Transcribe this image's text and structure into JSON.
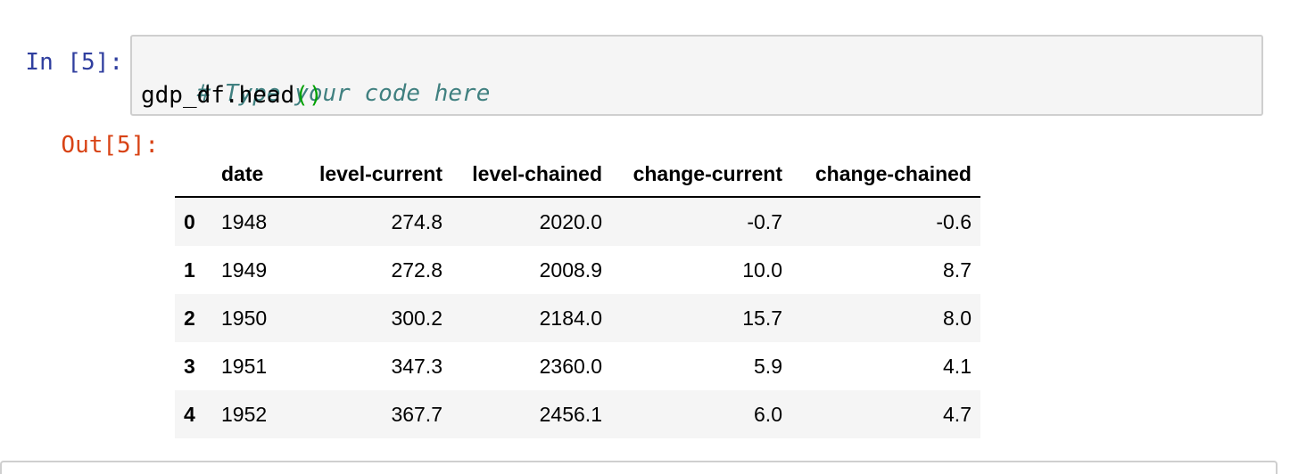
{
  "input_cell": {
    "prompt": "In [5]:",
    "comment": "# Type your code here",
    "code_prefix": "gdp_df.head",
    "code_parens": "()"
  },
  "output_cell": {
    "prompt": "Out[5]:"
  },
  "table": {
    "columns": [
      "",
      "date",
      "level-current",
      "level-chained",
      "change-current",
      "change-chained"
    ],
    "rows": [
      {
        "index": "0",
        "date": "1948",
        "level_current": "274.8",
        "level_chained": "2020.0",
        "change_current": "-0.7",
        "change_chained": "-0.6"
      },
      {
        "index": "1",
        "date": "1949",
        "level_current": "272.8",
        "level_chained": "2008.9",
        "change_current": "10.0",
        "change_chained": "8.7"
      },
      {
        "index": "2",
        "date": "1950",
        "level_current": "300.2",
        "level_chained": "2184.0",
        "change_current": "15.7",
        "change_chained": "8.0"
      },
      {
        "index": "3",
        "date": "1951",
        "level_current": "347.3",
        "level_chained": "2360.0",
        "change_current": "5.9",
        "change_chained": "4.1"
      },
      {
        "index": "4",
        "date": "1952",
        "level_current": "367.7",
        "level_chained": "2456.1",
        "change_current": "6.0",
        "change_chained": "4.7"
      }
    ]
  },
  "colors": {
    "in_prompt": "#303f9f",
    "out_prompt": "#d84315",
    "comment": "#408080",
    "paren": "#00a100",
    "cell_bg": "#f5f5f5",
    "cell_border": "#cfcfcf"
  }
}
